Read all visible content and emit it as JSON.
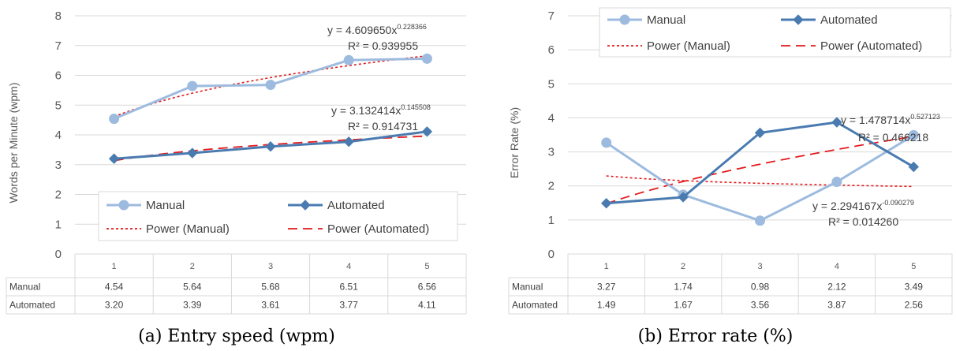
{
  "chart_data": [
    {
      "type": "line",
      "caption": "(a) Entry speed (wpm)",
      "ylabel": "Words per Minute (wpm)",
      "ylim": [
        0,
        8
      ],
      "yticks": [
        0,
        1,
        2,
        3,
        4,
        5,
        6,
        7,
        8
      ],
      "categories": [
        "1",
        "2",
        "3",
        "4",
        "5"
      ],
      "series": [
        {
          "name": "Manual",
          "values": [
            4.54,
            5.64,
            5.68,
            6.51,
            6.56
          ],
          "labels": [
            "4.54",
            "5.64",
            "5.68",
            "6.51",
            "6.56"
          ],
          "color": "#9dbbdf",
          "marker": "circle"
        },
        {
          "name": "Automated",
          "values": [
            3.2,
            3.39,
            3.61,
            3.77,
            4.11
          ],
          "labels": [
            "3.20",
            "3.39",
            "3.61",
            "3.77",
            "4.11"
          ],
          "color": "#4a7bb0",
          "marker": "diamond"
        }
      ],
      "trendlines": [
        {
          "name": "Power (Manual)",
          "a": 4.60965,
          "b": 0.228366,
          "eq_text": "y = 4.609650x",
          "eq_exp": "0.228366",
          "r2_text": "R² = 0.939955",
          "color": "#e31a1c",
          "style": "dotted"
        },
        {
          "name": "Power (Automated)",
          "a": 3.132414,
          "b": 0.145508,
          "eq_text": "y = 3.132414x",
          "eq_exp": "0.145508",
          "r2_text": "R² = 0.914731",
          "color": "#e31a1c",
          "style": "dashed"
        }
      ],
      "legend_position": "bottom",
      "grid": true
    },
    {
      "type": "line",
      "caption": "(b) Error rate (%)",
      "ylabel": "Error Rate (%)",
      "ylim": [
        0,
        7
      ],
      "yticks": [
        0,
        1,
        2,
        3,
        4,
        5,
        6,
        7
      ],
      "categories": [
        "1",
        "2",
        "3",
        "4",
        "5"
      ],
      "series": [
        {
          "name": "Manual",
          "values": [
            3.27,
            1.74,
            0.98,
            2.12,
            3.49
          ],
          "labels": [
            "3.27",
            "1.74",
            "0.98",
            "2.12",
            "3.49"
          ],
          "color": "#9dbbdf",
          "marker": "circle"
        },
        {
          "name": "Automated",
          "values": [
            1.49,
            1.67,
            3.56,
            3.87,
            2.56
          ],
          "labels": [
            "1.49",
            "1.67",
            "3.56",
            "3.87",
            "2.56"
          ],
          "color": "#4a7bb0",
          "marker": "diamond"
        }
      ],
      "trendlines": [
        {
          "name": "Power (Manual)",
          "a": 2.294167,
          "b": -0.090279,
          "eq_text": "y = 2.294167x",
          "eq_exp": "-0.090279",
          "r2_text": "R² = 0.014260",
          "color": "#e31a1c",
          "style": "dotted"
        },
        {
          "name": "Power (Automated)",
          "a": 1.478714,
          "b": 0.527123,
          "eq_text": "y = 1.478714x",
          "eq_exp": "0.527123",
          "r2_text": "R² = 0.466218",
          "color": "#e31a1c",
          "style": "dashed"
        }
      ],
      "legend_position": "top",
      "grid": true
    }
  ]
}
